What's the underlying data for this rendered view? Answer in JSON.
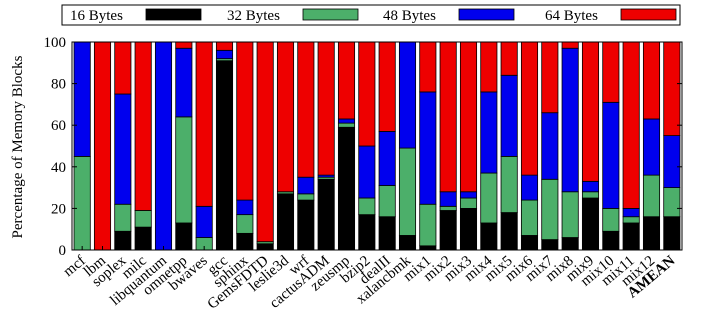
{
  "chart_data": {
    "type": "bar",
    "stacked": true,
    "ylabel": "Percentage of Memory Blocks",
    "ylim": [
      0,
      100
    ],
    "yticks": [
      0,
      20,
      40,
      60,
      80,
      100
    ],
    "legend_position": "top",
    "categories": [
      "mcf",
      "lbm",
      "soplex",
      "milc",
      "libquantum",
      "omnetpp",
      "bwaves",
      "gcc",
      "sphinx",
      "GemsFDTD",
      "leslie3d",
      "wrf",
      "cactusADM",
      "zeusmp",
      "bzip2",
      "dealII",
      "xalancbmk",
      "mix1",
      "mix2",
      "mix3",
      "mix4",
      "mix5",
      "mix6",
      "mix7",
      "mix8",
      "mix9",
      "mix10",
      "mix11",
      "mix12",
      "AMEAN"
    ],
    "bold_categories": [
      "AMEAN"
    ],
    "series": [
      {
        "name": "16 Bytes",
        "color": "#000000",
        "values": [
          0,
          0,
          9,
          11,
          0,
          13,
          0,
          91,
          8,
          3,
          27,
          24,
          34,
          59,
          17,
          16,
          7,
          2,
          19,
          20,
          13,
          18,
          7,
          5,
          6,
          25,
          9,
          13,
          16,
          16
        ]
      },
      {
        "name": "32 Bytes",
        "color": "#4caf6a",
        "values": [
          45,
          0,
          13,
          8,
          0,
          51,
          6,
          1,
          9,
          1,
          1,
          3,
          1,
          2,
          8,
          15,
          42,
          20,
          2,
          5,
          24,
          27,
          17,
          29,
          22,
          3,
          11,
          3,
          20,
          14
        ]
      },
      {
        "name": "48 Bytes",
        "color": "#0000ee",
        "values": [
          55,
          0,
          53,
          0,
          100,
          33,
          15,
          4,
          7,
          0,
          0,
          8,
          1,
          2,
          25,
          26,
          51,
          54,
          7,
          3,
          39,
          39,
          12,
          32,
          69,
          5,
          51,
          4,
          27,
          25
        ]
      },
      {
        "name": "64 Bytes",
        "color": "#ee0000",
        "values": [
          0,
          100,
          25,
          81,
          0,
          3,
          79,
          4,
          76,
          96,
          72,
          65,
          64,
          37,
          50,
          43,
          0,
          24,
          72,
          72,
          24,
          16,
          64,
          34,
          3,
          67,
          29,
          80,
          37,
          45
        ]
      }
    ]
  }
}
